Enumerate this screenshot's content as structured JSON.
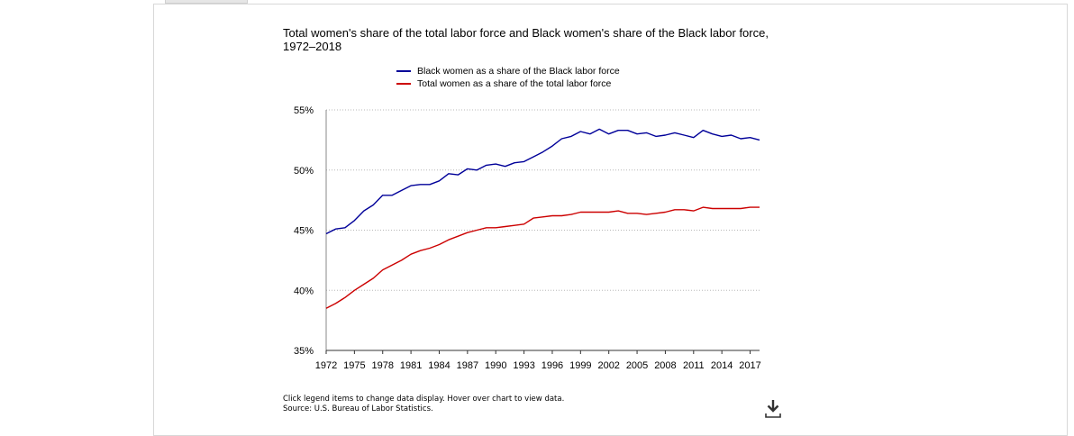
{
  "chart_data": {
    "type": "line",
    "title": "Total women's share of the total labor force and Black women's share of the Black labor force, 1972–2018",
    "x": [
      1972,
      1973,
      1974,
      1975,
      1976,
      1977,
      1978,
      1979,
      1980,
      1981,
      1982,
      1983,
      1984,
      1985,
      1986,
      1987,
      1988,
      1989,
      1990,
      1991,
      1992,
      1993,
      1994,
      1995,
      1996,
      1997,
      1998,
      1999,
      2000,
      2001,
      2002,
      2003,
      2004,
      2005,
      2006,
      2007,
      2008,
      2009,
      2010,
      2011,
      2012,
      2013,
      2014,
      2015,
      2016,
      2017,
      2018
    ],
    "series": [
      {
        "name": "Black women as a share of the Black labor force",
        "color": "#000099",
        "values": [
          44.7,
          45.1,
          45.2,
          45.8,
          46.6,
          47.1,
          47.9,
          47.9,
          48.3,
          48.7,
          48.8,
          48.8,
          49.1,
          49.7,
          49.6,
          50.1,
          50.0,
          50.4,
          50.5,
          50.3,
          50.6,
          50.7,
          51.1,
          51.5,
          52.0,
          52.6,
          52.8,
          53.2,
          53.0,
          53.4,
          53.0,
          53.3,
          53.3,
          53.0,
          53.1,
          52.8,
          52.9,
          53.1,
          52.9,
          52.7,
          53.3,
          53.0,
          52.8,
          52.9,
          52.6,
          52.7,
          52.5
        ]
      },
      {
        "name": "Total women as a share of the total labor force",
        "color": "#cc0000",
        "values": [
          38.5,
          38.9,
          39.4,
          40.0,
          40.5,
          41.0,
          41.7,
          42.1,
          42.5,
          43.0,
          43.3,
          43.5,
          43.8,
          44.2,
          44.5,
          44.8,
          45.0,
          45.2,
          45.2,
          45.3,
          45.4,
          45.5,
          46.0,
          46.1,
          46.2,
          46.2,
          46.3,
          46.5,
          46.5,
          46.5,
          46.5,
          46.6,
          46.4,
          46.4,
          46.3,
          46.4,
          46.5,
          46.7,
          46.7,
          46.6,
          46.9,
          46.8,
          46.8,
          46.8,
          46.8,
          46.9,
          46.9
        ]
      }
    ],
    "ylim": [
      35,
      55
    ],
    "yticks": [
      35,
      40,
      45,
      50,
      55
    ],
    "ytick_labels": [
      "35%",
      "40%",
      "45%",
      "50%",
      "55%"
    ],
    "xticks": [
      1972,
      1975,
      1978,
      1981,
      1984,
      1987,
      1990,
      1993,
      1996,
      1999,
      2002,
      2005,
      2008,
      2011,
      2014,
      2017
    ],
    "xtick_labels": [
      "1972",
      "1975",
      "1978",
      "1981",
      "1984",
      "1987",
      "1990",
      "1993",
      "1996",
      "1999",
      "2002",
      "2005",
      "2008",
      "2011",
      "2014",
      "2017"
    ],
    "xlim": [
      1972,
      2018
    ],
    "grid": true,
    "legend_position": "top-center"
  },
  "footnote": {
    "line1": "Click legend items to change data display. Hover over chart to view data.",
    "line2": "Source: U.S. Bureau of Labor Statistics."
  },
  "icons": {
    "download": "download-icon"
  }
}
